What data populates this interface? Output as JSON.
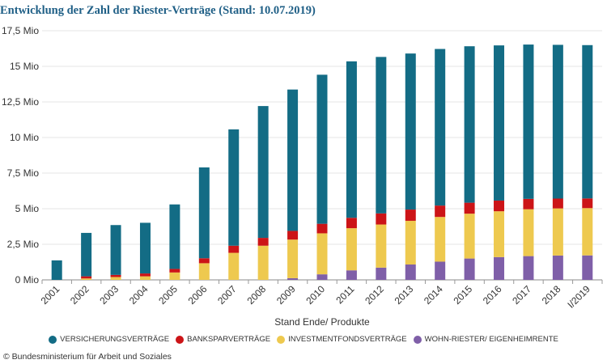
{
  "title": "Entwicklung der Zahl der Riester-Verträge (Stand: 10.07.2019)",
  "source": "© Bundesministerium für Arbeit und Soziales",
  "colors": {
    "VERSICHERUNGSVERTRÄGE": "#136c85",
    "BANKSPARVERTRÄGE": "#cc1417",
    "INVESTMENTFONDSVERTRÄGE": "#eec94f",
    "WOHN-RIESTER/ EIGENHEIMRENTE": "#7f5fa8"
  },
  "chart_data": {
    "type": "bar",
    "stacked": true,
    "title": "Entwicklung der Zahl der Riester-Verträge (Stand: 10.07.2019)",
    "xlabel": "Stand Ende/ Produkte",
    "ylabel": "",
    "ylim": [
      0,
      17.5
    ],
    "yticks": [
      0,
      2.5,
      5,
      7.5,
      10,
      12.5,
      15,
      17.5
    ],
    "ytick_labels": [
      "0 Mio",
      "2,5 Mio",
      "5 Mio",
      "7,5 Mio",
      "10 Mio",
      "12,5 Mio",
      "15 Mio",
      "17,5 Mio"
    ],
    "grid": true,
    "legend_position": "bottom",
    "categories": [
      "2001",
      "2002",
      "2003",
      "2004",
      "2005",
      "2006",
      "2007",
      "2008",
      "2009",
      "2010",
      "2011",
      "2012",
      "2013",
      "2014",
      "2015",
      "2016",
      "2017",
      "2018",
      "I/2019"
    ],
    "series": [
      {
        "name": "WOHN-RIESTER/ EIGENHEIMRENTE",
        "values": [
          0,
          0,
          0,
          0,
          0,
          0,
          0,
          0,
          0.12,
          0.39,
          0.67,
          0.86,
          1.08,
          1.28,
          1.5,
          1.6,
          1.67,
          1.71,
          1.72
        ]
      },
      {
        "name": "INVESTMENTFONDSVERTRÄGE",
        "values": [
          0,
          0.1,
          0.2,
          0.25,
          0.52,
          1.17,
          1.9,
          2.4,
          2.71,
          2.88,
          2.96,
          3.03,
          3.07,
          3.14,
          3.15,
          3.22,
          3.29,
          3.31,
          3.32
        ]
      },
      {
        "name": "BANKSPARVERTRÄGE",
        "values": [
          0,
          0.15,
          0.15,
          0.2,
          0.25,
          0.35,
          0.5,
          0.55,
          0.61,
          0.67,
          0.73,
          0.78,
          0.79,
          0.8,
          0.77,
          0.75,
          0.73,
          0.69,
          0.68
        ]
      },
      {
        "name": "VERSICHERUNGSVERTRÄGE",
        "values": [
          1.37,
          3.05,
          3.5,
          3.56,
          4.53,
          6.38,
          8.17,
          9.26,
          9.93,
          10.47,
          10.99,
          10.99,
          10.96,
          11.0,
          10.99,
          10.9,
          10.84,
          10.8,
          10.77
        ]
      }
    ]
  },
  "legend": [
    {
      "label": "VERSICHERUNGSVERTRÄGE",
      "color": "#136c85"
    },
    {
      "label": "BANKSPARVERTRÄGE",
      "color": "#cc1417"
    },
    {
      "label": "INVESTMENTFONDSVERTRÄGE",
      "color": "#eec94f"
    },
    {
      "label": "WOHN-RIESTER/ EIGENHEIMRENTE",
      "color": "#7f5fa8"
    }
  ]
}
